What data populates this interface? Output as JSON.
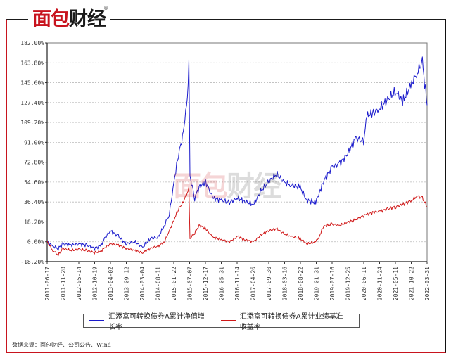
{
  "brand": {
    "logo_red": "面包",
    "logo_dark": "财经",
    "registered_mark": "®",
    "watermark_red": "面包",
    "watermark_dark": "财经"
  },
  "legend": {
    "items": [
      {
        "label": "汇添富可转换债券A累计净值增长率",
        "color": "#1a1acc"
      },
      {
        "label": "汇添富可转换债券A累计业绩基准收益率",
        "color": "#d01818"
      }
    ]
  },
  "source": "数据来源：面包财经、公司公告、Wind",
  "colors": {
    "frame_accent": "#c8141e",
    "series1": "#1a1acc",
    "series2": "#d01818",
    "grid": "#bbbbbb"
  },
  "chart_data": {
    "type": "line",
    "title": "",
    "xlabel": "",
    "ylabel": "",
    "ylim": [
      -18.2,
      182.0
    ],
    "grid": "horizontal dashed",
    "legend_position": "bottom",
    "y_ticks": [
      "182.00%",
      "163.80%",
      "145.60%",
      "127.40%",
      "109.20%",
      "91.00%",
      "72.80%",
      "54.60%",
      "36.40%",
      "18.20%",
      "0.00%",
      "-18.20%"
    ],
    "x_ticks": [
      "2011-06-17",
      "2011-11-28",
      "2012-05-14",
      "2012-10-19",
      "2013-04-02",
      "2013-09-12",
      "2014-03-04",
      "2014-08-11",
      "2015-01-22",
      "2015-07-07",
      "2015-12-17",
      "2016-05-31",
      "2016-11-14",
      "2017-04-26",
      "2017-09-30",
      "2018-03-16",
      "2018-08-22",
      "2019-01-31",
      "2019-07-16",
      "2019-12-25",
      "2020-06-11",
      "2020-11-24",
      "2021-05-11",
      "2021-10-22",
      "2022-03-31"
    ],
    "x": [
      "2011-06-17",
      "2011-08-15",
      "2011-10-10",
      "2011-11-28",
      "2012-02-20",
      "2012-05-14",
      "2012-08-01",
      "2012-10-19",
      "2012-12-20",
      "2013-02-10",
      "2013-04-02",
      "2013-06-25",
      "2013-09-12",
      "2013-12-10",
      "2014-03-04",
      "2014-05-20",
      "2014-08-11",
      "2014-10-15",
      "2014-12-05",
      "2015-01-22",
      "2015-03-10",
      "2015-04-20",
      "2015-06-10",
      "2015-06-26",
      "2015-07-07",
      "2015-08-25",
      "2015-10-10",
      "2015-12-17",
      "2016-02-29",
      "2016-05-31",
      "2016-08-20",
      "2016-11-14",
      "2017-01-20",
      "2017-04-26",
      "2017-07-10",
      "2017-09-30",
      "2017-12-20",
      "2018-03-16",
      "2018-05-20",
      "2018-08-22",
      "2018-10-30",
      "2019-01-31",
      "2019-03-10",
      "2019-04-20",
      "2019-07-16",
      "2019-10-10",
      "2019-12-25",
      "2020-03-20",
      "2020-06-11",
      "2020-07-15",
      "2020-09-20",
      "2020-11-24",
      "2021-02-15",
      "2021-05-11",
      "2021-07-20",
      "2021-10-22",
      "2021-12-20",
      "2022-02-10",
      "2022-03-31"
    ],
    "series": [
      {
        "name": "汇添富可转换债券A累计净值增长率",
        "values": [
          0,
          -4,
          -6,
          -2,
          -3,
          -2,
          -3,
          -6,
          -4,
          4,
          10,
          5,
          -2,
          0,
          -5,
          3,
          4,
          15,
          25,
          55,
          80,
          95,
          130,
          168,
          60,
          40,
          50,
          55,
          40,
          38,
          36,
          40,
          37,
          34,
          46,
          55,
          62,
          54,
          52,
          50,
          38,
          36,
          45,
          55,
          68,
          72,
          80,
          95,
          92,
          115,
          118,
          122,
          130,
          138,
          128,
          145,
          155,
          165,
          125
        ]
      },
      {
        "name": "汇添富可转换债券A累计业绩基准收益率",
        "values": [
          0,
          -8,
          -12,
          -6,
          -8,
          -7,
          -8,
          -10,
          -9,
          -5,
          -2,
          -3,
          -6,
          -8,
          -10,
          -6,
          -4,
          0,
          10,
          20,
          30,
          35,
          45,
          50,
          3,
          8,
          15,
          12,
          4,
          2,
          0,
          5,
          2,
          0,
          6,
          10,
          12,
          7,
          5,
          3,
          -2,
          0,
          5,
          14,
          16,
          15,
          18,
          20,
          24,
          25,
          27,
          28,
          30,
          32,
          34,
          38,
          42,
          40,
          32
        ]
      }
    ]
  }
}
